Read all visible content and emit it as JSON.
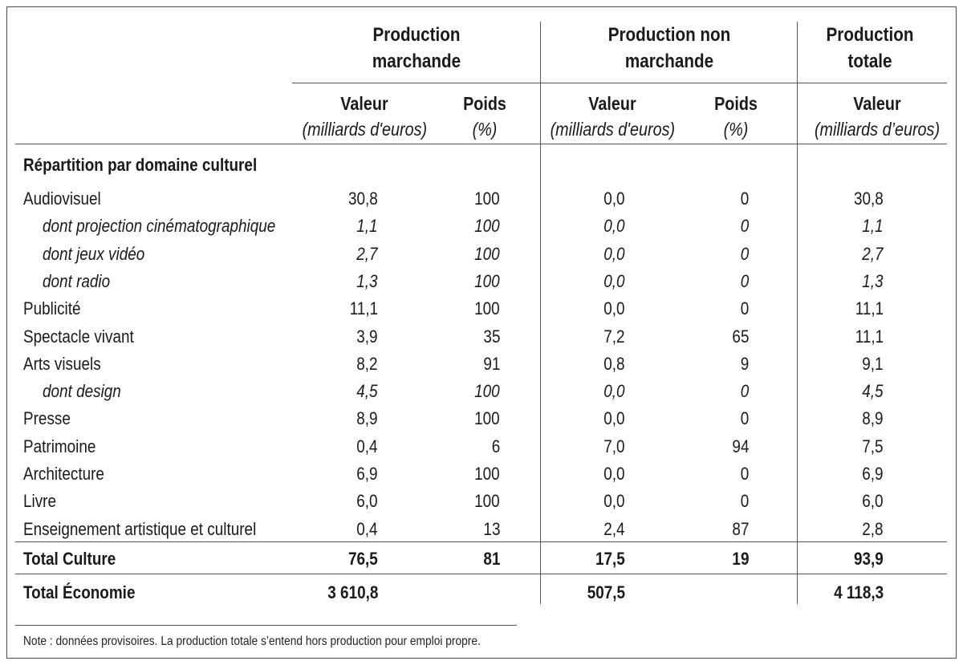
{
  "groups": {
    "marchande": "Production marchande",
    "non_marchande": "Production non marchande",
    "totale": "Production totale"
  },
  "subheaders": {
    "valeur": "Valeur",
    "valeur_unit": "(milliards d'euros)",
    "valeur_unit_alt": "(milliards d’euros)",
    "poids": "Poids",
    "poids_unit": "(%)"
  },
  "section_label": "Répartition par domaine culturel",
  "rows": [
    {
      "label": "Audiovisuel",
      "style": "normal",
      "mv": "30,8",
      "mp": "100",
      "nv": "0,0",
      "np": "0",
      "tv": "30,8"
    },
    {
      "label": "dont projection cinématographique",
      "style": "sub",
      "mv": "1,1",
      "mp": "100",
      "nv": "0,0",
      "np": "0",
      "tv": "1,1"
    },
    {
      "label": "dont jeux vidéo",
      "style": "sub",
      "mv": "2,7",
      "mp": "100",
      "nv": "0,0",
      "np": "0",
      "tv": "2,7"
    },
    {
      "label": "dont radio",
      "style": "sub",
      "mv": "1,3",
      "mp": "100",
      "nv": "0,0",
      "np": "0",
      "tv": "1,3"
    },
    {
      "label": "Publicité",
      "style": "normal",
      "mv": "11,1",
      "mp": "100",
      "nv": "0,0",
      "np": "0",
      "tv": "11,1"
    },
    {
      "label": "Spectacle vivant",
      "style": "normal",
      "mv": "3,9",
      "mp": "35",
      "nv": "7,2",
      "np": "65",
      "tv": "11,1"
    },
    {
      "label": "Arts visuels",
      "style": "normal",
      "mv": "8,2",
      "mp": "91",
      "nv": "0,8",
      "np": "9",
      "tv": "9,1"
    },
    {
      "label": "dont design",
      "style": "sub",
      "mv": "4,5",
      "mp": "100",
      "nv": "0,0",
      "np": "0",
      "tv": "4,5"
    },
    {
      "label": "Presse",
      "style": "normal",
      "mv": "8,9",
      "mp": "100",
      "nv": "0,0",
      "np": "0",
      "tv": "8,9"
    },
    {
      "label": "Patrimoine",
      "style": "normal",
      "mv": "0,4",
      "mp": "6",
      "nv": "7,0",
      "np": "94",
      "tv": "7,5"
    },
    {
      "label": "Architecture",
      "style": "normal",
      "mv": "6,9",
      "mp": "100",
      "nv": "0,0",
      "np": "0",
      "tv": "6,9"
    },
    {
      "label": "Livre",
      "style": "normal",
      "mv": "6,0",
      "mp": "100",
      "nv": "0,0",
      "np": "0",
      "tv": "6,0"
    },
    {
      "label": "Enseignement artistique et culturel",
      "style": "normal",
      "mv": "0,4",
      "mp": "13",
      "nv": "2,4",
      "np": "87",
      "tv": "2,8"
    }
  ],
  "total_culture": {
    "label": "Total Culture",
    "mv": "76,5",
    "mp": "81",
    "nv": "17,5",
    "np": "19",
    "tv": "93,9"
  },
  "total_economie": {
    "label": "Total Économie",
    "mv": "3 610,8",
    "mp": "",
    "nv": "507,5",
    "np": "",
    "tv": "4 118,3"
  },
  "note": "Note : données provisoires. La production totale s’entend hors production pour emploi propre."
}
